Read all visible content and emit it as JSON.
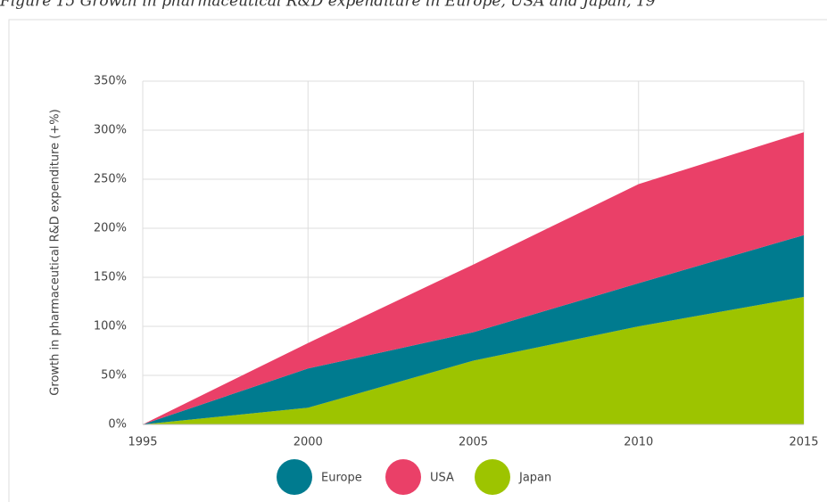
{
  "chart_data": {
    "type": "stacked_area",
    "title": "Figure 15 Growth in pharmaceutical R&D expenditure in Europe, USA and Japan, 19",
    "y_label": "Growth in pharmaceutical  R&D expenditure  (+%)",
    "x": [
      1995,
      2000,
      2005,
      2010,
      2015
    ],
    "series": [
      {
        "name": "Japan",
        "color": "#9dc400",
        "values": [
          0,
          17,
          65,
          100,
          130
        ]
      },
      {
        "name": "Europe",
        "color": "#007b8f",
        "values": [
          0,
          40,
          29,
          44,
          63
        ]
      },
      {
        "name": "USA",
        "color": "#ea4068",
        "values": [
          0,
          26,
          69,
          101,
          105
        ]
      }
    ],
    "xlim": [
      1995,
      2015
    ],
    "xticks": [
      1995,
      2000,
      2005,
      2010,
      2015
    ],
    "ylim": [
      0,
      350
    ],
    "yticks": [
      {
        "value": 0,
        "label": "0%"
      },
      {
        "value": 50,
        "label": "50%"
      },
      {
        "value": 100,
        "label": "100%"
      },
      {
        "value": 150,
        "label": "150%"
      },
      {
        "value": 200,
        "label": "200%"
      },
      {
        "value": 250,
        "label": "250%"
      },
      {
        "value": 300,
        "label": "300%"
      },
      {
        "value": 350,
        "label": "350%"
      }
    ],
    "grid": true
  }
}
